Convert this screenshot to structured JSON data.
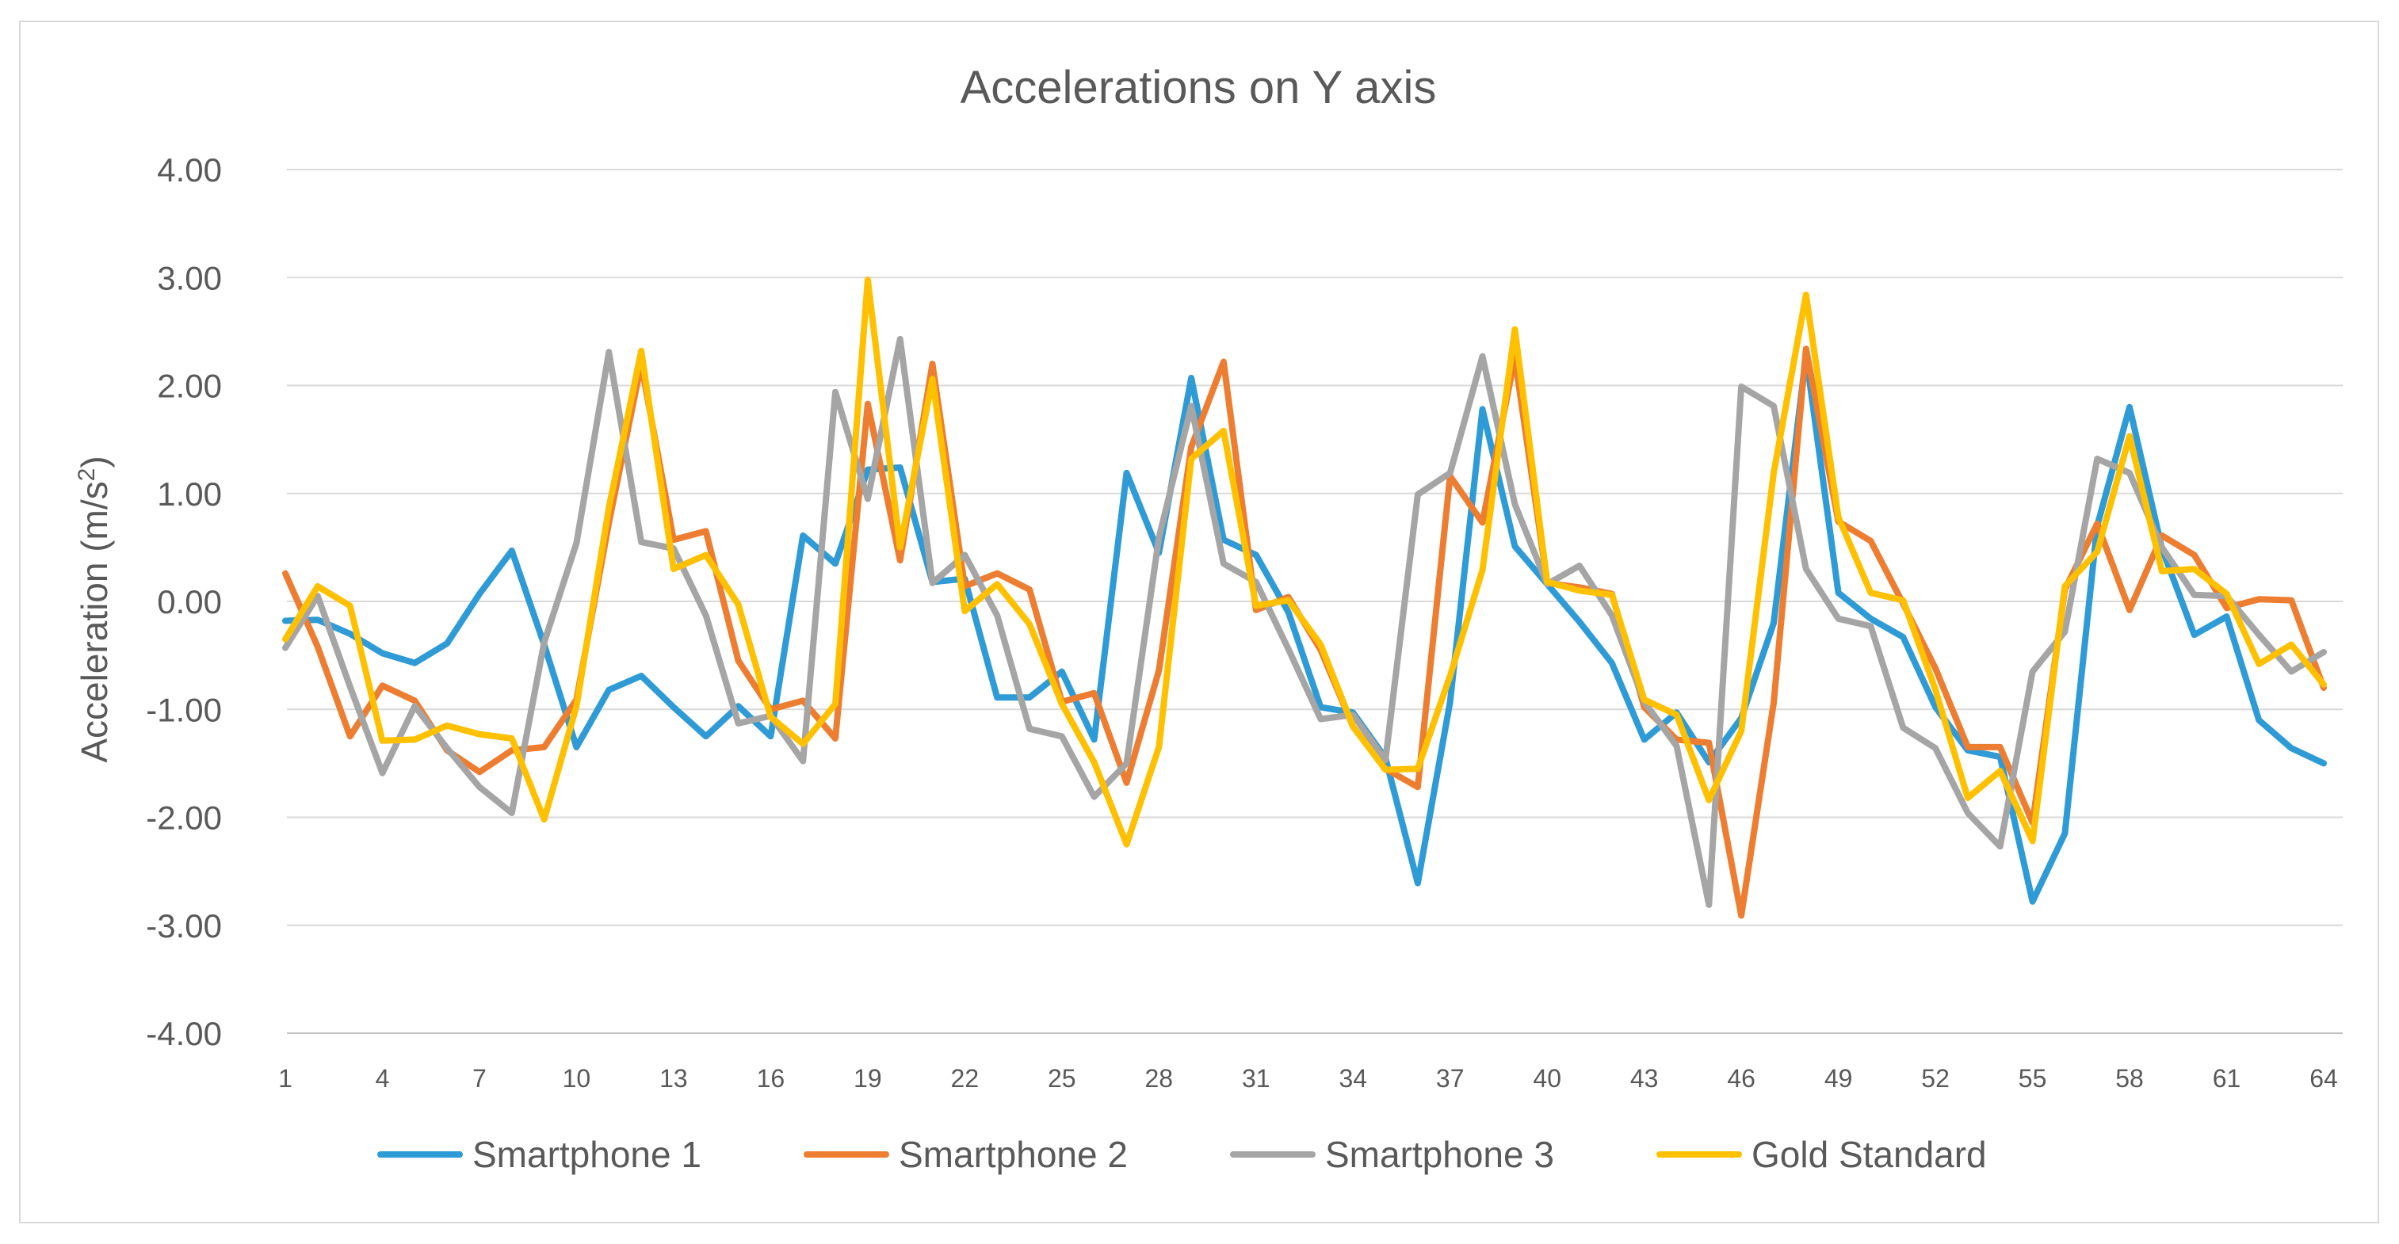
{
  "chart_data": {
    "type": "line",
    "title": "Accelerations on Y axis",
    "xlabel": "",
    "ylabel_main": "Acceleration (m/s",
    "ylabel_sup": "2",
    "ylabel_close": ")",
    "ylim": [
      -4,
      4
    ],
    "yticks": [
      4,
      3,
      2,
      1,
      0,
      -1,
      -2,
      -3,
      -4
    ],
    "ytick_labels": [
      "4.00",
      "3.00",
      "2.00",
      "1.00",
      "0.00",
      "-1.00",
      "-2.00",
      "-3.00",
      "-4.00"
    ],
    "xrange": [
      1,
      64
    ],
    "xtick_labels": [
      "1",
      "4",
      "7",
      "10",
      "13",
      "16",
      "19",
      "22",
      "25",
      "28",
      "31",
      "34",
      "37",
      "40",
      "43",
      "46",
      "49",
      "52",
      "55",
      "58",
      "61",
      "64"
    ],
    "xtick_values": [
      1,
      4,
      7,
      10,
      13,
      16,
      19,
      22,
      25,
      28,
      31,
      34,
      37,
      40,
      43,
      46,
      49,
      52,
      55,
      58,
      61,
      64
    ],
    "grid": true,
    "legend_position": "bottom",
    "series": [
      {
        "name": "Smartphone 1",
        "color": "#2e9bd6",
        "values": [
          -0.18,
          -0.17,
          -0.3,
          -0.48,
          -0.57,
          -0.39,
          0.07,
          0.47,
          -0.4,
          -1.35,
          -0.82,
          -0.69,
          -0.98,
          -1.25,
          -0.97,
          -1.25,
          0.61,
          0.35,
          1.22,
          1.24,
          0.18,
          0.21,
          -0.89,
          -0.89,
          -0.65,
          -1.28,
          1.19,
          0.45,
          2.07,
          0.57,
          0.43,
          -0.1,
          -0.98,
          -1.03,
          -1.45,
          -2.61,
          -0.93,
          1.78,
          0.51,
          0.16,
          -0.19,
          -0.57,
          -1.28,
          -1.03,
          -1.49,
          -1.08,
          -0.2,
          2.28,
          0.08,
          -0.16,
          -0.33,
          -0.98,
          -1.38,
          -1.44,
          -2.78,
          -2.15,
          0.7,
          1.8,
          0.49,
          -0.31,
          -0.14,
          -1.1,
          -1.36,
          -1.5
        ]
      },
      {
        "name": "Smartphone 2",
        "color": "#ed7d31",
        "values": [
          0.26,
          -0.42,
          -1.25,
          -0.78,
          -0.92,
          -1.38,
          -1.58,
          -1.38,
          -1.35,
          -0.91,
          0.73,
          2.2,
          0.57,
          0.65,
          -0.55,
          -1.0,
          -0.92,
          -1.27,
          1.83,
          0.38,
          2.2,
          0.14,
          0.26,
          0.11,
          -0.93,
          -0.85,
          -1.68,
          -0.64,
          1.43,
          2.22,
          -0.08,
          0.04,
          -0.45,
          -1.16,
          -1.55,
          -1.72,
          1.16,
          0.73,
          2.26,
          0.17,
          0.13,
          0.07,
          -0.98,
          -1.28,
          -1.31,
          -2.91,
          -0.94,
          2.34,
          0.74,
          0.56,
          -0.02,
          -0.62,
          -1.35,
          -1.35,
          -2.05,
          0.11,
          0.72,
          -0.08,
          0.61,
          0.43,
          -0.06,
          0.02,
          0.01,
          -0.8
        ]
      },
      {
        "name": "Smartphone 3",
        "color": "#a5a5a5",
        "values": [
          -0.43,
          0.05,
          -0.79,
          -1.59,
          -0.97,
          -1.36,
          -1.72,
          -1.96,
          -0.38,
          0.54,
          2.31,
          0.55,
          0.49,
          -0.13,
          -1.13,
          -1.06,
          -1.48,
          1.94,
          0.95,
          2.43,
          0.17,
          0.43,
          -0.13,
          -1.18,
          -1.25,
          -1.81,
          -1.5,
          0.59,
          1.81,
          0.35,
          0.18,
          -0.44,
          -1.09,
          -1.05,
          -1.47,
          0.99,
          1.19,
          2.27,
          0.9,
          0.16,
          0.33,
          -0.13,
          -0.93,
          -1.34,
          -2.81,
          1.99,
          1.81,
          0.3,
          -0.16,
          -0.23,
          -1.17,
          -1.36,
          -1.96,
          -2.27,
          -0.65,
          -0.28,
          1.32,
          1.19,
          0.5,
          0.06,
          0.05,
          -0.31,
          -0.65,
          -0.47
        ]
      },
      {
        "name": "Gold Standard",
        "color": "#ffc000",
        "values": [
          -0.35,
          0.14,
          -0.04,
          -1.29,
          -1.28,
          -1.15,
          -1.23,
          -1.27,
          -2.02,
          -0.97,
          0.87,
          2.32,
          0.3,
          0.43,
          -0.03,
          -1.07,
          -1.32,
          -0.95,
          2.98,
          0.5,
          2.06,
          -0.09,
          0.16,
          -0.21,
          -0.95,
          -1.49,
          -2.25,
          -1.35,
          1.32,
          1.58,
          -0.04,
          0.01,
          -0.4,
          -1.16,
          -1.56,
          -1.55,
          -0.69,
          0.29,
          2.52,
          0.18,
          0.1,
          0.06,
          -0.91,
          -1.05,
          -1.84,
          -1.2,
          1.19,
          2.84,
          0.78,
          0.08,
          0.01,
          -0.82,
          -1.82,
          -1.57,
          -2.22,
          0.14,
          0.46,
          1.53,
          0.28,
          0.3,
          0.07,
          -0.58,
          -0.4,
          -0.77
        ]
      }
    ]
  }
}
